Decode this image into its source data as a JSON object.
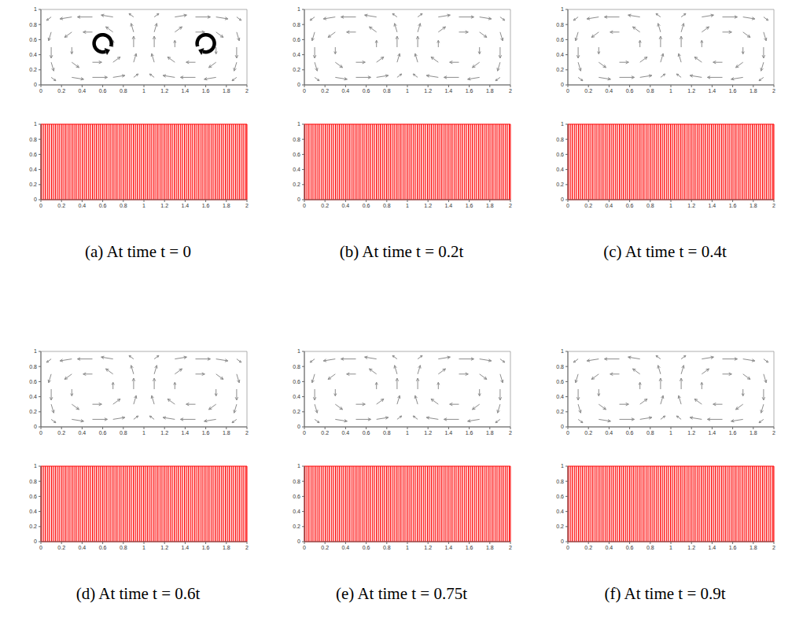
{
  "chart_data": [
    {
      "type": "quiver",
      "color": "#8c8c8c",
      "xlim": [
        0,
        2
      ],
      "ylim": [
        0,
        1
      ],
      "xticks": [
        0,
        0.2,
        0.4,
        0.6,
        0.8,
        1,
        1.2,
        1.4,
        1.6,
        1.8,
        2
      ],
      "yticks": [
        0,
        0.2,
        0.4,
        0.6,
        0.8,
        1
      ],
      "grid": false,
      "grid_x": [
        0.1,
        0.3,
        0.5,
        0.7,
        0.9,
        1.1,
        1.3,
        1.5,
        1.7,
        1.9
      ],
      "grid_y": [
        0.1,
        0.3,
        0.5,
        0.7,
        0.9
      ],
      "u": [
        [
          0.09,
          0.23,
          0.29,
          0.23,
          0.09,
          -0.09,
          -0.23,
          -0.29,
          -0.23,
          -0.09
        ],
        [
          0.05,
          0.14,
          0.18,
          0.14,
          0.05,
          -0.05,
          -0.14,
          -0.18,
          -0.14,
          -0.05
        ],
        [
          0,
          0,
          0,
          0,
          0,
          0,
          0,
          0,
          0,
          0
        ],
        [
          -0.05,
          -0.14,
          -0.18,
          -0.14,
          -0.05,
          0.05,
          0.14,
          0.18,
          0.14,
          0.05
        ],
        [
          -0.09,
          -0.23,
          -0.29,
          -0.23,
          -0.09,
          0.09,
          0.23,
          0.29,
          0.23,
          0.09
        ]
      ],
      "v": [
        [
          -0.09,
          -0.05,
          0,
          0.05,
          0.09,
          0.09,
          0.05,
          0,
          -0.05,
          -0.09
        ],
        [
          -0.23,
          -0.14,
          0,
          0.14,
          0.23,
          0.23,
          0.14,
          0,
          -0.14,
          -0.23
        ],
        [
          -0.29,
          -0.18,
          0,
          0.18,
          0.29,
          0.29,
          0.18,
          0,
          -0.18,
          -0.29
        ],
        [
          -0.23,
          -0.14,
          0,
          0.14,
          0.23,
          0.23,
          0.14,
          0,
          -0.14,
          -0.23
        ],
        [
          -0.09,
          -0.05,
          0,
          0.05,
          0.09,
          0.09,
          0.05,
          0,
          -0.05,
          -0.09
        ]
      ]
    },
    {
      "type": "material_lines",
      "color": "#ff0000",
      "caption": "(a) At time t = 0",
      "xlim": [
        0,
        2
      ],
      "ylim": [
        0,
        1
      ],
      "xticks": [
        0,
        0.2,
        0.4,
        0.6,
        0.8,
        1,
        1.2,
        1.4,
        1.6,
        1.8,
        2
      ],
      "yticks": [
        0,
        0.2,
        0.4,
        0.6,
        0.8,
        1
      ],
      "grid": false
    },
    {
      "type": "quiver",
      "color": "#8c8c8c",
      "xlim": [
        0,
        2
      ],
      "ylim": [
        0,
        1
      ],
      "xticks": [
        0,
        0.2,
        0.4,
        0.6,
        0.8,
        1,
        1.2,
        1.4,
        1.6,
        1.8,
        2
      ],
      "yticks": [
        0,
        0.2,
        0.4,
        0.6,
        0.8,
        1
      ],
      "grid": false,
      "grid_x": [
        0.1,
        0.3,
        0.5,
        0.7,
        0.9,
        1.1,
        1.3,
        1.5,
        1.7,
        1.9
      ],
      "grid_y": [
        0.1,
        0.3,
        0.5,
        0.7,
        0.9
      ],
      "u": [
        [
          0.09,
          0.23,
          0.29,
          0.23,
          0.09,
          -0.09,
          -0.23,
          -0.29,
          -0.23,
          -0.09
        ],
        [
          0.05,
          0.14,
          0.18,
          0.14,
          0.05,
          -0.05,
          -0.14,
          -0.18,
          -0.14,
          -0.05
        ],
        [
          0,
          0,
          0,
          0,
          0,
          0,
          0,
          0,
          0,
          0
        ],
        [
          -0.05,
          -0.14,
          -0.18,
          -0.14,
          -0.05,
          0.05,
          0.14,
          0.18,
          0.14,
          0.05
        ],
        [
          -0.09,
          -0.23,
          -0.29,
          -0.23,
          -0.09,
          0.09,
          0.23,
          0.29,
          0.23,
          0.09
        ]
      ],
      "v": [
        [
          -0.09,
          -0.05,
          0,
          0.05,
          0.09,
          0.09,
          0.05,
          0,
          -0.05,
          -0.09
        ],
        [
          -0.23,
          -0.14,
          0,
          0.14,
          0.23,
          0.23,
          0.14,
          0,
          -0.14,
          -0.23
        ],
        [
          -0.29,
          -0.18,
          0,
          0.18,
          0.29,
          0.29,
          0.18,
          0,
          -0.18,
          -0.29
        ],
        [
          -0.23,
          -0.14,
          0,
          0.14,
          0.23,
          0.23,
          0.14,
          0,
          -0.14,
          -0.23
        ],
        [
          -0.09,
          -0.05,
          0,
          0.05,
          0.09,
          0.09,
          0.05,
          0,
          -0.05,
          -0.09
        ]
      ]
    },
    {
      "type": "material_lines",
      "color": "#ff0000",
      "caption": "(b) At time t = 0.2t",
      "xlim": [
        0,
        2
      ],
      "ylim": [
        0,
        1
      ],
      "xticks": [
        0,
        0.2,
        0.4,
        0.6,
        0.8,
        1,
        1.2,
        1.4,
        1.6,
        1.8,
        2
      ],
      "yticks": [
        0,
        0.2,
        0.4,
        0.6,
        0.8,
        1
      ],
      "grid": false
    },
    {
      "type": "quiver",
      "color": "#8c8c8c",
      "xlim": [
        0,
        2
      ],
      "ylim": [
        0,
        1
      ],
      "xticks": [
        0,
        0.2,
        0.4,
        0.6,
        0.8,
        1,
        1.2,
        1.4,
        1.6,
        1.8,
        2
      ],
      "yticks": [
        0,
        0.2,
        0.4,
        0.6,
        0.8,
        1
      ],
      "grid": false,
      "grid_x": [
        0.1,
        0.3,
        0.5,
        0.7,
        0.9,
        1.1,
        1.3,
        1.5,
        1.7,
        1.9
      ],
      "grid_y": [
        0.1,
        0.3,
        0.5,
        0.7,
        0.9
      ],
      "u": [
        [
          0.09,
          0.23,
          0.29,
          0.23,
          0.09,
          -0.09,
          -0.23,
          -0.29,
          -0.23,
          -0.09
        ],
        [
          0.05,
          0.14,
          0.18,
          0.14,
          0.05,
          -0.05,
          -0.14,
          -0.18,
          -0.14,
          -0.05
        ],
        [
          0,
          0,
          0,
          0,
          0,
          0,
          0,
          0,
          0,
          0
        ],
        [
          -0.05,
          -0.14,
          -0.18,
          -0.14,
          -0.05,
          0.05,
          0.14,
          0.18,
          0.14,
          0.05
        ],
        [
          -0.09,
          -0.23,
          -0.29,
          -0.23,
          -0.09,
          0.09,
          0.23,
          0.29,
          0.23,
          0.09
        ]
      ],
      "v": [
        [
          -0.09,
          -0.05,
          0,
          0.05,
          0.09,
          0.09,
          0.05,
          0,
          -0.05,
          -0.09
        ],
        [
          -0.23,
          -0.14,
          0,
          0.14,
          0.23,
          0.23,
          0.14,
          0,
          -0.14,
          -0.23
        ],
        [
          -0.29,
          -0.18,
          0,
          0.18,
          0.29,
          0.29,
          0.18,
          0,
          -0.18,
          -0.29
        ],
        [
          -0.23,
          -0.14,
          0,
          0.14,
          0.23,
          0.23,
          0.14,
          0,
          -0.14,
          -0.23
        ],
        [
          -0.09,
          -0.05,
          0,
          0.05,
          0.09,
          0.09,
          0.05,
          0,
          -0.05,
          -0.09
        ]
      ]
    },
    {
      "type": "material_lines",
      "color": "#ff0000",
      "caption": "(c) At time t = 0.4t",
      "xlim": [
        0,
        2
      ],
      "ylim": [
        0,
        1
      ],
      "xticks": [
        0,
        0.2,
        0.4,
        0.6,
        0.8,
        1,
        1.2,
        1.4,
        1.6,
        1.8,
        2
      ],
      "yticks": [
        0,
        0.2,
        0.4,
        0.6,
        0.8,
        1
      ],
      "grid": false
    },
    {
      "type": "quiver",
      "color": "#8c8c8c",
      "xlim": [
        0,
        2
      ],
      "ylim": [
        0,
        1
      ],
      "xticks": [
        0,
        0.2,
        0.4,
        0.6,
        0.8,
        1,
        1.2,
        1.4,
        1.6,
        1.8,
        2
      ],
      "yticks": [
        0,
        0.2,
        0.4,
        0.6,
        0.8,
        1
      ],
      "grid": false,
      "grid_x": [
        0.1,
        0.3,
        0.5,
        0.7,
        0.9,
        1.1,
        1.3,
        1.5,
        1.7,
        1.9
      ],
      "grid_y": [
        0.1,
        0.3,
        0.5,
        0.7,
        0.9
      ],
      "u": [
        [
          0.09,
          0.23,
          0.29,
          0.23,
          0.09,
          -0.09,
          -0.23,
          -0.29,
          -0.23,
          -0.09
        ],
        [
          0.05,
          0.14,
          0.18,
          0.14,
          0.05,
          -0.05,
          -0.14,
          -0.18,
          -0.14,
          -0.05
        ],
        [
          0,
          0,
          0,
          0,
          0,
          0,
          0,
          0,
          0,
          0
        ],
        [
          -0.05,
          -0.14,
          -0.18,
          -0.14,
          -0.05,
          0.05,
          0.14,
          0.18,
          0.14,
          0.05
        ],
        [
          -0.09,
          -0.23,
          -0.29,
          -0.23,
          -0.09,
          0.09,
          0.23,
          0.29,
          0.23,
          0.09
        ]
      ],
      "v": [
        [
          -0.09,
          -0.05,
          0,
          0.05,
          0.09,
          0.09,
          0.05,
          0,
          -0.05,
          -0.09
        ],
        [
          -0.23,
          -0.14,
          0,
          0.14,
          0.23,
          0.23,
          0.14,
          0,
          -0.14,
          -0.23
        ],
        [
          -0.29,
          -0.18,
          0,
          0.18,
          0.29,
          0.29,
          0.18,
          0,
          -0.18,
          -0.29
        ],
        [
          -0.23,
          -0.14,
          0,
          0.14,
          0.23,
          0.23,
          0.14,
          0,
          -0.14,
          -0.23
        ],
        [
          -0.09,
          -0.05,
          0,
          0.05,
          0.09,
          0.09,
          0.05,
          0,
          -0.05,
          -0.09
        ]
      ]
    },
    {
      "type": "material_lines",
      "color": "#ff0000",
      "caption": "(d) At time t = 0.6t",
      "xlim": [
        0,
        2
      ],
      "ylim": [
        0,
        1
      ],
      "xticks": [
        0,
        0.2,
        0.4,
        0.6,
        0.8,
        1,
        1.2,
        1.4,
        1.6,
        1.8,
        2
      ],
      "yticks": [
        0,
        0.2,
        0.4,
        0.6,
        0.8,
        1
      ],
      "grid": false
    },
    {
      "type": "quiver",
      "color": "#8c8c8c",
      "xlim": [
        0,
        2
      ],
      "ylim": [
        0,
        1
      ],
      "xticks": [
        0,
        0.2,
        0.4,
        0.6,
        0.8,
        1,
        1.2,
        1.4,
        1.6,
        1.8,
        2
      ],
      "yticks": [
        0,
        0.2,
        0.4,
        0.6,
        0.8,
        1
      ],
      "grid": false,
      "grid_x": [
        0.1,
        0.3,
        0.5,
        0.7,
        0.9,
        1.1,
        1.3,
        1.5,
        1.7,
        1.9
      ],
      "grid_y": [
        0.1,
        0.3,
        0.5,
        0.7,
        0.9
      ],
      "u": [
        [
          0.09,
          0.23,
          0.29,
          0.23,
          0.09,
          -0.09,
          -0.23,
          -0.29,
          -0.23,
          -0.09
        ],
        [
          0.05,
          0.14,
          0.18,
          0.14,
          0.05,
          -0.05,
          -0.14,
          -0.18,
          -0.14,
          -0.05
        ],
        [
          0,
          0,
          0,
          0,
          0,
          0,
          0,
          0,
          0,
          0
        ],
        [
          -0.05,
          -0.14,
          -0.18,
          -0.14,
          -0.05,
          0.05,
          0.14,
          0.18,
          0.14,
          0.05
        ],
        [
          -0.09,
          -0.23,
          -0.29,
          -0.23,
          -0.09,
          0.09,
          0.23,
          0.29,
          0.23,
          0.09
        ]
      ],
      "v": [
        [
          -0.09,
          -0.05,
          0,
          0.05,
          0.09,
          0.09,
          0.05,
          0,
          -0.05,
          -0.09
        ],
        [
          -0.23,
          -0.14,
          0,
          0.14,
          0.23,
          0.23,
          0.14,
          0,
          -0.14,
          -0.23
        ],
        [
          -0.29,
          -0.18,
          0,
          0.18,
          0.29,
          0.29,
          0.18,
          0,
          -0.18,
          -0.29
        ],
        [
          -0.23,
          -0.14,
          0,
          0.14,
          0.23,
          0.23,
          0.14,
          0,
          -0.14,
          -0.23
        ],
        [
          -0.09,
          -0.05,
          0,
          0.05,
          0.09,
          0.09,
          0.05,
          0,
          -0.05,
          -0.09
        ]
      ]
    },
    {
      "type": "material_lines",
      "color": "#ff0000",
      "caption": "(e) At time t = 0.75t",
      "xlim": [
        0,
        2
      ],
      "ylim": [
        0,
        1
      ],
      "xticks": [
        0,
        0.2,
        0.4,
        0.6,
        0.8,
        1,
        1.2,
        1.4,
        1.6,
        1.8,
        2
      ],
      "yticks": [
        0,
        0.2,
        0.4,
        0.6,
        0.8,
        1
      ],
      "grid": false
    },
    {
      "type": "quiver",
      "color": "#8c8c8c",
      "xlim": [
        0,
        2
      ],
      "ylim": [
        0,
        1
      ],
      "xticks": [
        0,
        0.2,
        0.4,
        0.6,
        0.8,
        1,
        1.2,
        1.4,
        1.6,
        1.8,
        2
      ],
      "yticks": [
        0,
        0.2,
        0.4,
        0.6,
        0.8,
        1
      ],
      "grid": false,
      "grid_x": [
        0.1,
        0.3,
        0.5,
        0.7,
        0.9,
        1.1,
        1.3,
        1.5,
        1.7,
        1.9
      ],
      "grid_y": [
        0.1,
        0.3,
        0.5,
        0.7,
        0.9
      ],
      "u": [
        [
          0.09,
          0.23,
          0.29,
          0.23,
          0.09,
          -0.09,
          -0.23,
          -0.29,
          -0.23,
          -0.09
        ],
        [
          0.05,
          0.14,
          0.18,
          0.14,
          0.05,
          -0.05,
          -0.14,
          -0.18,
          -0.14,
          -0.05
        ],
        [
          0,
          0,
          0,
          0,
          0,
          0,
          0,
          0,
          0,
          0
        ],
        [
          -0.05,
          -0.14,
          -0.18,
          -0.14,
          -0.05,
          0.05,
          0.14,
          0.18,
          0.14,
          0.05
        ],
        [
          -0.09,
          -0.23,
          -0.29,
          -0.23,
          -0.09,
          0.09,
          0.23,
          0.29,
          0.23,
          0.09
        ]
      ],
      "v": [
        [
          -0.09,
          -0.05,
          0,
          0.05,
          0.09,
          0.09,
          0.05,
          0,
          -0.05,
          -0.09
        ],
        [
          -0.23,
          -0.14,
          0,
          0.14,
          0.23,
          0.23,
          0.14,
          0,
          -0.14,
          -0.23
        ],
        [
          -0.29,
          -0.18,
          0,
          0.18,
          0.29,
          0.29,
          0.18,
          0,
          -0.18,
          -0.29
        ],
        [
          -0.23,
          -0.14,
          0,
          0.14,
          0.23,
          0.23,
          0.14,
          0,
          -0.14,
          -0.23
        ],
        [
          -0.09,
          -0.05,
          0,
          0.05,
          0.09,
          0.09,
          0.05,
          0,
          -0.05,
          -0.09
        ]
      ]
    },
    {
      "type": "material_lines",
      "color": "#ff0000",
      "caption": "(f) At time t = 0.9t",
      "xlim": [
        0,
        2
      ],
      "ylim": [
        0,
        1
      ],
      "xticks": [
        0,
        0.2,
        0.4,
        0.6,
        0.8,
        1,
        1.2,
        1.4,
        1.6,
        1.8,
        2
      ],
      "yticks": [
        0,
        0.2,
        0.4,
        0.6,
        0.8,
        1
      ],
      "grid": false
    }
  ]
}
